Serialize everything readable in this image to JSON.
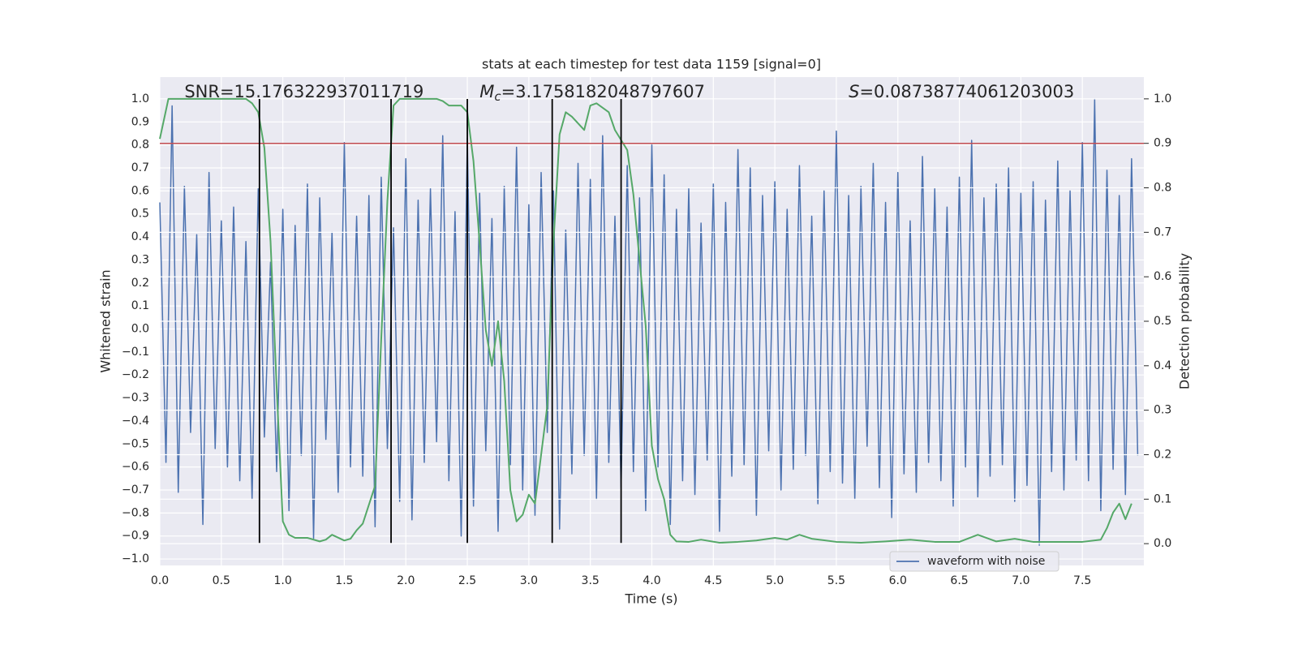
{
  "chart_data": {
    "type": "line",
    "title": "stats at each timestep for test data 1159 [signal=0]",
    "xlabel": "Time (s)",
    "ylabel": "Whitened strain",
    "y2label": "Detection probability",
    "annotations": [
      {
        "text": "SNR=15.176322937011719",
        "x": 0.2
      },
      {
        "symbol": "M",
        "subscript": "c",
        "text": "=3.1758182048797607",
        "x": 2.6
      },
      {
        "symbol": "S",
        "text": "=0.08738774061203003",
        "x": 5.6
      }
    ],
    "xlim": [
      0,
      8
    ],
    "ylim": [
      -1.028,
      1.095
    ],
    "y2lim": [
      -0.049,
      1.049
    ],
    "xticks": [
      {
        "value": 0,
        "label": "0.0"
      },
      {
        "value": 0.5,
        "label": "0.5"
      },
      {
        "value": 1,
        "label": "1.0"
      },
      {
        "value": 1.5,
        "label": "1.5"
      },
      {
        "value": 2,
        "label": "2.0"
      },
      {
        "value": 2.5,
        "label": "2.5"
      },
      {
        "value": 3,
        "label": "3.0"
      },
      {
        "value": 3.5,
        "label": "3.5"
      },
      {
        "value": 4,
        "label": "4.0"
      },
      {
        "value": 4.5,
        "label": "4.5"
      },
      {
        "value": 5,
        "label": "5.0"
      },
      {
        "value": 5.5,
        "label": "5.5"
      },
      {
        "value": 6,
        "label": "6.0"
      },
      {
        "value": 6.5,
        "label": "6.5"
      },
      {
        "value": 7,
        "label": "7.0"
      },
      {
        "value": 7.5,
        "label": "7.5"
      }
    ],
    "yticks": [
      {
        "value": -1,
        "label": "−1.0"
      },
      {
        "value": -0.9,
        "label": "−0.9"
      },
      {
        "value": -0.8,
        "label": "−0.8"
      },
      {
        "value": -0.7,
        "label": "−0.7"
      },
      {
        "value": -0.6,
        "label": "−0.6"
      },
      {
        "value": -0.5,
        "label": "−0.5"
      },
      {
        "value": -0.4,
        "label": "−0.4"
      },
      {
        "value": -0.3,
        "label": "−0.3"
      },
      {
        "value": -0.2,
        "label": "−0.2"
      },
      {
        "value": -0.1,
        "label": "−0.1"
      },
      {
        "value": 0,
        "label": "0.0"
      },
      {
        "value": 0.1,
        "label": "0.1"
      },
      {
        "value": 0.2,
        "label": "0.2"
      },
      {
        "value": 0.3,
        "label": "0.3"
      },
      {
        "value": 0.4,
        "label": "0.4"
      },
      {
        "value": 0.5,
        "label": "0.5"
      },
      {
        "value": 0.6,
        "label": "0.6"
      },
      {
        "value": 0.7,
        "label": "0.7"
      },
      {
        "value": 0.8,
        "label": "0.8"
      },
      {
        "value": 0.9,
        "label": "0.9"
      },
      {
        "value": 1,
        "label": "1.0"
      }
    ],
    "y2ticks": [
      {
        "value": 0,
        "label": "0.0"
      },
      {
        "value": 0.1,
        "label": "0.1"
      },
      {
        "value": 0.2,
        "label": "0.2"
      },
      {
        "value": 0.3,
        "label": "0.3"
      },
      {
        "value": 0.4,
        "label": "0.4"
      },
      {
        "value": 0.5,
        "label": "0.5"
      },
      {
        "value": 0.6,
        "label": "0.6"
      },
      {
        "value": 0.7,
        "label": "0.7"
      },
      {
        "value": 0.8,
        "label": "0.8"
      },
      {
        "value": 0.9,
        "label": "0.9"
      },
      {
        "value": 1,
        "label": "1.0"
      }
    ],
    "grid": true,
    "legend": "lower right",
    "threshold": 0.9,
    "threshold_color": "#c44e52",
    "vlines": [
      0.81,
      1.88,
      2.5,
      3.19,
      3.75
    ],
    "vline_ylim": [
      -0.93,
      1.0
    ],
    "vline_color": "#000000",
    "series": [
      {
        "name": "waveform with noise",
        "color": "#4c72b0",
        "x": [
          0,
          0.05,
          0.1,
          0.15,
          0.2,
          0.25,
          0.3,
          0.35,
          0.4,
          0.45,
          0.5,
          0.55,
          0.6,
          0.65,
          0.7,
          0.75,
          0.8,
          0.85,
          0.9,
          0.95,
          1,
          1.05,
          1.1,
          1.15,
          1.2,
          1.25,
          1.3,
          1.35,
          1.4,
          1.45,
          1.5,
          1.55,
          1.6,
          1.65,
          1.7,
          1.75,
          1.8,
          1.85,
          1.9,
          1.95,
          2,
          2.05,
          2.1,
          2.15,
          2.2,
          2.25,
          2.3,
          2.35,
          2.4,
          2.45,
          2.5,
          2.55,
          2.6,
          2.65,
          2.7,
          2.75,
          2.8,
          2.85,
          2.9,
          2.95,
          3,
          3.05,
          3.1,
          3.15,
          3.2,
          3.25,
          3.3,
          3.35,
          3.4,
          3.45,
          3.5,
          3.55,
          3.6,
          3.65,
          3.7,
          3.75,
          3.8,
          3.85,
          3.9,
          3.95,
          4,
          4.05,
          4.1,
          4.15,
          4.2,
          4.25,
          4.3,
          4.35,
          4.4,
          4.45,
          4.5,
          4.55,
          4.6,
          4.65,
          4.7,
          4.75,
          4.8,
          4.85,
          4.9,
          4.95,
          5,
          5.05,
          5.1,
          5.15,
          5.2,
          5.25,
          5.3,
          5.35,
          5.4,
          5.45,
          5.5,
          5.55,
          5.6,
          5.65,
          5.7,
          5.75,
          5.8,
          5.85,
          5.9,
          5.95,
          6,
          6.05,
          6.1,
          6.15,
          6.2,
          6.25,
          6.3,
          6.35,
          6.4,
          6.45,
          6.5,
          6.55,
          6.6,
          6.65,
          6.7,
          6.75,
          6.8,
          6.85,
          6.9,
          6.95,
          7,
          7.05,
          7.1,
          7.15,
          7.2,
          7.25,
          7.3,
          7.35,
          7.4,
          7.45,
          7.5,
          7.55,
          7.6,
          7.65,
          7.7,
          7.75,
          7.8,
          7.85,
          7.9,
          7.95
        ],
        "values": [
          0.55,
          -0.58,
          0.97,
          -0.71,
          0.62,
          -0.45,
          0.41,
          -0.85,
          0.68,
          -0.52,
          0.47,
          -0.6,
          0.53,
          -0.66,
          0.38,
          -0.74,
          0.61,
          -0.47,
          0.29,
          -0.62,
          0.52,
          -0.79,
          0.45,
          -0.55,
          0.63,
          -0.91,
          0.57,
          -0.48,
          0.42,
          -0.71,
          0.81,
          -0.6,
          0.49,
          -0.64,
          0.58,
          -0.86,
          0.66,
          -0.52,
          0.44,
          -0.75,
          0.74,
          -0.83,
          0.56,
          -0.58,
          0.61,
          -0.49,
          0.84,
          -0.66,
          0.51,
          -0.9,
          0.83,
          -0.77,
          0.59,
          -0.53,
          0.48,
          -0.88,
          0.62,
          -0.59,
          0.79,
          -0.7,
          0.54,
          -0.81,
          0.68,
          -0.45,
          0.6,
          -0.87,
          0.43,
          -0.63,
          0.72,
          -0.55,
          0.65,
          -0.74,
          0.84,
          -0.58,
          0.49,
          -0.69,
          0.71,
          -0.62,
          0.57,
          -0.79,
          0.8,
          -0.6,
          0.67,
          -0.85,
          0.52,
          -0.66,
          0.61,
          -0.72,
          0.46,
          -0.57,
          0.63,
          -0.88,
          0.55,
          -0.64,
          0.78,
          -0.59,
          0.7,
          -0.81,
          0.58,
          -0.53,
          0.64,
          -0.7,
          0.52,
          -0.61,
          0.71,
          -0.55,
          0.49,
          -0.76,
          0.6,
          -0.62,
          0.86,
          -0.67,
          0.58,
          -0.74,
          0.62,
          -0.51,
          0.72,
          -0.69,
          0.55,
          -0.82,
          0.68,
          -0.63,
          0.47,
          -0.71,
          0.75,
          -0.58,
          0.61,
          -0.66,
          0.53,
          -0.77,
          0.66,
          -0.6,
          0.82,
          -0.73,
          0.57,
          -0.64,
          0.63,
          -0.59,
          0.7,
          -0.75,
          0.59,
          -0.68,
          0.64,
          -0.94,
          0.56,
          -0.62,
          0.73,
          -0.7,
          0.6,
          -0.57,
          0.81,
          -0.66,
          1.0,
          -0.79,
          0.69,
          -0.61,
          0.58,
          -0.72,
          0.74,
          -0.55
        ]
      },
      {
        "color": "#55a868",
        "axis": "y2",
        "x": [
          0,
          0.07,
          0.5,
          0.7,
          0.75,
          0.8,
          0.85,
          0.9,
          0.95,
          1,
          1.05,
          1.1,
          1.2,
          1.3,
          1.35,
          1.4,
          1.5,
          1.55,
          1.6,
          1.65,
          1.75,
          1.8,
          1.85,
          1.9,
          1.95,
          2.25,
          2.3,
          2.35,
          2.45,
          2.5,
          2.55,
          2.6,
          2.65,
          2.7,
          2.75,
          2.8,
          2.85,
          2.9,
          2.95,
          3,
          3.05,
          3.15,
          3.2,
          3.25,
          3.3,
          3.35,
          3.45,
          3.5,
          3.55,
          3.65,
          3.7,
          3.8,
          3.85,
          3.95,
          4,
          4.05,
          4.1,
          4.15,
          4.2,
          4.3,
          4.4,
          4.55,
          4.7,
          4.85,
          5,
          5.1,
          5.2,
          5.3,
          5.5,
          5.7,
          5.9,
          6.1,
          6.3,
          6.5,
          6.65,
          6.8,
          6.95,
          7.1,
          7.3,
          7.5,
          7.65,
          7.7,
          7.75,
          7.8,
          7.85,
          7.9
        ],
        "values": [
          0.91,
          1.0,
          1.0,
          1.0,
          0.99,
          0.97,
          0.89,
          0.68,
          0.35,
          0.05,
          0.02,
          0.013,
          0.013,
          0.005,
          0.009,
          0.02,
          0.007,
          0.011,
          0.03,
          0.045,
          0.13,
          0.46,
          0.77,
          0.985,
          1.0,
          1.0,
          0.995,
          0.985,
          0.985,
          0.97,
          0.86,
          0.675,
          0.48,
          0.4,
          0.5,
          0.365,
          0.12,
          0.05,
          0.065,
          0.11,
          0.09,
          0.31,
          0.675,
          0.92,
          0.97,
          0.96,
          0.93,
          0.985,
          0.99,
          0.97,
          0.93,
          0.885,
          0.785,
          0.49,
          0.22,
          0.145,
          0.1,
          0.02,
          0.005,
          0.004,
          0.009,
          0.002,
          0.004,
          0.007,
          0.013,
          0.009,
          0.02,
          0.011,
          0.004,
          0.002,
          0.005,
          0.009,
          0.004,
          0.004,
          0.02,
          0.005,
          0.011,
          0.004,
          0.004,
          0.004,
          0.009,
          0.035,
          0.07,
          0.09,
          0.055,
          0.09
        ]
      }
    ]
  }
}
